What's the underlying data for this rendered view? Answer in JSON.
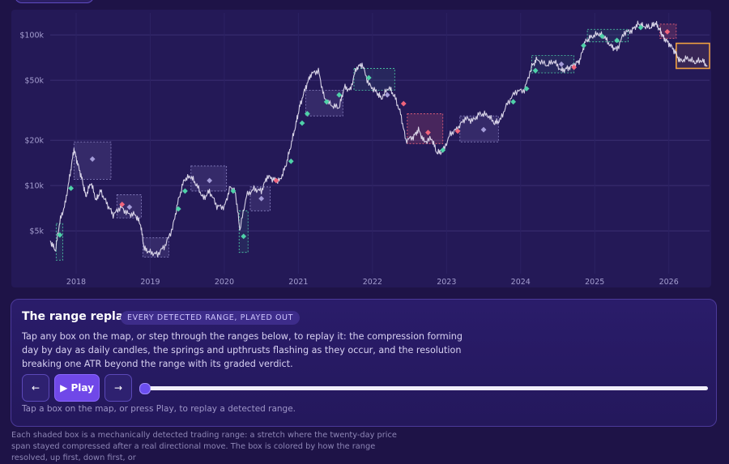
{
  "chart_data": {
    "type": "line",
    "y_scale": "log",
    "y_ticks": [
      "$5k",
      "$10k",
      "$20k",
      "$50k",
      "$100k"
    ],
    "y_tick_values": [
      5000,
      10000,
      20000,
      50000,
      100000
    ],
    "x_ticks": [
      "2018",
      "2019",
      "2020",
      "2021",
      "2022",
      "2023",
      "2024",
      "2025",
      "2026"
    ],
    "x_tick_values": [
      2018,
      2019,
      2020,
      2021,
      2022,
      2023,
      2024,
      2025,
      2026
    ],
    "xlim": [
      2017.65,
      2026.55
    ],
    "ylim": [
      2600,
      140000
    ],
    "grid": true,
    "series": [
      {
        "values": [
          [
            2017.65,
            4300
          ],
          [
            2017.72,
            3700
          ],
          [
            2017.78,
            5800
          ],
          [
            2017.85,
            7500
          ],
          [
            2017.92,
            12000
          ],
          [
            2017.97,
            17500
          ],
          [
            2018.02,
            14000
          ],
          [
            2018.08,
            11000
          ],
          [
            2018.13,
            8500
          ],
          [
            2018.2,
            10500
          ],
          [
            2018.27,
            8000
          ],
          [
            2018.33,
            9200
          ],
          [
            2018.42,
            7500
          ],
          [
            2018.5,
            6400
          ],
          [
            2018.6,
            7200
          ],
          [
            2018.7,
            6500
          ],
          [
            2018.8,
            6400
          ],
          [
            2018.87,
            5500
          ],
          [
            2018.92,
            3800
          ],
          [
            2019.0,
            3600
          ],
          [
            2019.1,
            3500
          ],
          [
            2019.2,
            4000
          ],
          [
            2019.3,
            5200
          ],
          [
            2019.38,
            8000
          ],
          [
            2019.46,
            11000
          ],
          [
            2019.55,
            11500
          ],
          [
            2019.63,
            10000
          ],
          [
            2019.72,
            8200
          ],
          [
            2019.8,
            9200
          ],
          [
            2019.9,
            7300
          ],
          [
            2020.0,
            7200
          ],
          [
            2020.08,
            9800
          ],
          [
            2020.15,
            9000
          ],
          [
            2020.21,
            5100
          ],
          [
            2020.3,
            8600
          ],
          [
            2020.4,
            9500
          ],
          [
            2020.5,
            9200
          ],
          [
            2020.58,
            11500
          ],
          [
            2020.67,
            11000
          ],
          [
            2020.75,
            10800
          ],
          [
            2020.83,
            13500
          ],
          [
            2020.9,
            18500
          ],
          [
            2020.97,
            26000
          ],
          [
            2021.02,
            34000
          ],
          [
            2021.1,
            45000
          ],
          [
            2021.17,
            55000
          ],
          [
            2021.27,
            58000
          ],
          [
            2021.35,
            38000
          ],
          [
            2021.45,
            34000
          ],
          [
            2021.55,
            33000
          ],
          [
            2021.62,
            45000
          ],
          [
            2021.7,
            43000
          ],
          [
            2021.78,
            60000
          ],
          [
            2021.86,
            64000
          ],
          [
            2021.95,
            47000
          ],
          [
            2022.05,
            42000
          ],
          [
            2022.12,
            38000
          ],
          [
            2022.22,
            45000
          ],
          [
            2022.3,
            39000
          ],
          [
            2022.38,
            30000
          ],
          [
            2022.45,
            20000
          ],
          [
            2022.55,
            21000
          ],
          [
            2022.62,
            23500
          ],
          [
            2022.7,
            19500
          ],
          [
            2022.8,
            20500
          ],
          [
            2022.87,
            16500
          ],
          [
            2022.95,
            16800
          ],
          [
            2023.05,
            22000
          ],
          [
            2023.15,
            24000
          ],
          [
            2023.25,
            28000
          ],
          [
            2023.35,
            27000
          ],
          [
            2023.45,
            30000
          ],
          [
            2023.55,
            29500
          ],
          [
            2023.65,
            26000
          ],
          [
            2023.72,
            27000
          ],
          [
            2023.82,
            35000
          ],
          [
            2023.93,
            42000
          ],
          [
            2024.05,
            43000
          ],
          [
            2024.15,
            62000
          ],
          [
            2024.22,
            69000
          ],
          [
            2024.35,
            63000
          ],
          [
            2024.45,
            67000
          ],
          [
            2024.55,
            58000
          ],
          [
            2024.63,
            60000
          ],
          [
            2024.72,
            63000
          ],
          [
            2024.8,
            68000
          ],
          [
            2024.87,
            90000
          ],
          [
            2024.95,
            97000
          ],
          [
            2025.05,
            102000
          ],
          [
            2025.13,
            97000
          ],
          [
            2025.22,
            84000
          ],
          [
            2025.3,
            80000
          ],
          [
            2025.4,
            104000
          ],
          [
            2025.5,
            107000
          ],
          [
            2025.58,
            118000
          ],
          [
            2025.65,
            115000
          ],
          [
            2025.75,
            112000
          ],
          [
            2025.82,
            120000
          ],
          [
            2025.88,
            108000
          ],
          [
            2025.93,
            96000
          ],
          [
            2026.0,
            88000
          ],
          [
            2026.08,
            78000
          ],
          [
            2026.15,
            67000
          ],
          [
            2026.25,
            70000
          ],
          [
            2026.35,
            66000
          ],
          [
            2026.45,
            68000
          ],
          [
            2026.52,
            62000
          ]
        ]
      }
    ],
    "ranges": [
      {
        "x0": 2017.73,
        "x1": 2017.82,
        "y0": 3200,
        "y1": 5600,
        "outcome": "up"
      },
      {
        "x0": 2017.97,
        "x1": 2018.47,
        "y0": 11000,
        "y1": 19500,
        "outcome": "neutral"
      },
      {
        "x0": 2018.55,
        "x1": 2018.88,
        "y0": 6100,
        "y1": 8700,
        "outcome": "neutral"
      },
      {
        "x0": 2018.9,
        "x1": 2019.25,
        "y0": 3350,
        "y1": 4500,
        "outcome": "neutral"
      },
      {
        "x0": 2019.55,
        "x1": 2020.03,
        "y0": 9200,
        "y1": 13500,
        "outcome": "neutral"
      },
      {
        "x0": 2020.2,
        "x1": 2020.32,
        "y0": 3600,
        "y1": 6800,
        "outcome": "up"
      },
      {
        "x0": 2020.35,
        "x1": 2020.62,
        "y0": 6800,
        "y1": 9800,
        "outcome": "neutral"
      },
      {
        "x0": 2021.1,
        "x1": 2021.6,
        "y0": 29000,
        "y1": 43000,
        "outcome": "neutral"
      },
      {
        "x0": 2021.75,
        "x1": 2022.3,
        "y0": 43000,
        "y1": 60000,
        "outcome": "up"
      },
      {
        "x0": 2022.47,
        "x1": 2022.95,
        "y0": 19000,
        "y1": 30000,
        "outcome": "down"
      },
      {
        "x0": 2023.18,
        "x1": 2023.7,
        "y0": 19500,
        "y1": 29000,
        "outcome": "neutral"
      },
      {
        "x0": 2024.15,
        "x1": 2024.72,
        "y0": 56000,
        "y1": 73000,
        "outcome": "up"
      },
      {
        "x0": 2024.9,
        "x1": 2025.45,
        "y0": 90000,
        "y1": 109000,
        "outcome": "up"
      },
      {
        "x0": 2025.88,
        "x1": 2026.1,
        "y0": 95000,
        "y1": 118000,
        "outcome": "down"
      },
      {
        "x0": 2026.1,
        "x1": 2026.55,
        "y0": 60000,
        "y1": 88000,
        "outcome": "active"
      }
    ],
    "markers": [
      {
        "x": 2017.78,
        "y": 4700,
        "kind": "up"
      },
      {
        "x": 2017.93,
        "y": 9600,
        "kind": "up"
      },
      {
        "x": 2018.22,
        "y": 15000,
        "kind": "neutral"
      },
      {
        "x": 2018.62,
        "y": 7500,
        "kind": "down"
      },
      {
        "x": 2018.72,
        "y": 7200,
        "kind": "neutral"
      },
      {
        "x": 2019.38,
        "y": 7000,
        "kind": "up"
      },
      {
        "x": 2019.47,
        "y": 9200,
        "kind": "up"
      },
      {
        "x": 2019.8,
        "y": 10800,
        "kind": "neutral"
      },
      {
        "x": 2020.12,
        "y": 9200,
        "kind": "up"
      },
      {
        "x": 2020.26,
        "y": 4600,
        "kind": "up"
      },
      {
        "x": 2020.5,
        "y": 8200,
        "kind": "neutral"
      },
      {
        "x": 2020.7,
        "y": 10800,
        "kind": "down"
      },
      {
        "x": 2020.9,
        "y": 14500,
        "kind": "up"
      },
      {
        "x": 2021.05,
        "y": 26000,
        "kind": "up"
      },
      {
        "x": 2021.12,
        "y": 30000,
        "kind": "up"
      },
      {
        "x": 2021.38,
        "y": 36000,
        "kind": "up"
      },
      {
        "x": 2021.55,
        "y": 40000,
        "kind": "up"
      },
      {
        "x": 2021.95,
        "y": 52000,
        "kind": "up"
      },
      {
        "x": 2022.2,
        "y": 40000,
        "kind": "neutral"
      },
      {
        "x": 2022.42,
        "y": 35000,
        "kind": "down"
      },
      {
        "x": 2022.75,
        "y": 22500,
        "kind": "down"
      },
      {
        "x": 2022.95,
        "y": 17200,
        "kind": "up"
      },
      {
        "x": 2023.15,
        "y": 23000,
        "kind": "down"
      },
      {
        "x": 2023.5,
        "y": 23500,
        "kind": "neutral"
      },
      {
        "x": 2023.9,
        "y": 36000,
        "kind": "up"
      },
      {
        "x": 2024.08,
        "y": 44000,
        "kind": "up"
      },
      {
        "x": 2024.2,
        "y": 58000,
        "kind": "up"
      },
      {
        "x": 2024.55,
        "y": 64000,
        "kind": "neutral"
      },
      {
        "x": 2024.72,
        "y": 61000,
        "kind": "down"
      },
      {
        "x": 2024.85,
        "y": 85000,
        "kind": "up"
      },
      {
        "x": 2025.1,
        "y": 98000,
        "kind": "up"
      },
      {
        "x": 2025.3,
        "y": 92000,
        "kind": "up"
      },
      {
        "x": 2025.62,
        "y": 112000,
        "kind": "up"
      },
      {
        "x": 2025.98,
        "y": 105000,
        "kind": "down"
      }
    ]
  },
  "replay": {
    "title": "The range replay",
    "badge": "EVERY DETECTED RANGE, PLAYED OUT",
    "description": "Tap any box on the map, or step through the ranges below, to replay it: the compression forming day by day as daily candles, the springs and upthrusts flashing as they occur, and the resolution breaking one ATR beyond the range with its graded verdict.",
    "prev_label": "←",
    "play_label": "▶ Play",
    "next_label": "→",
    "hint": "Tap a box on the map, or press Play, to replay a detected range.",
    "progress": 0
  },
  "footnote": "Each shaded box is a mechanically detected trading range: a stretch where the twenty-day price span stayed compressed after a real directional move. The box is colored by how the range resolved, up first, down first, or",
  "colors": {
    "up": "#4fd1a8",
    "down": "#f0647c",
    "neutral": "#8d86c6",
    "active": "#f0a040",
    "line": "#e6e2f2",
    "grid": "#3a2f72"
  }
}
